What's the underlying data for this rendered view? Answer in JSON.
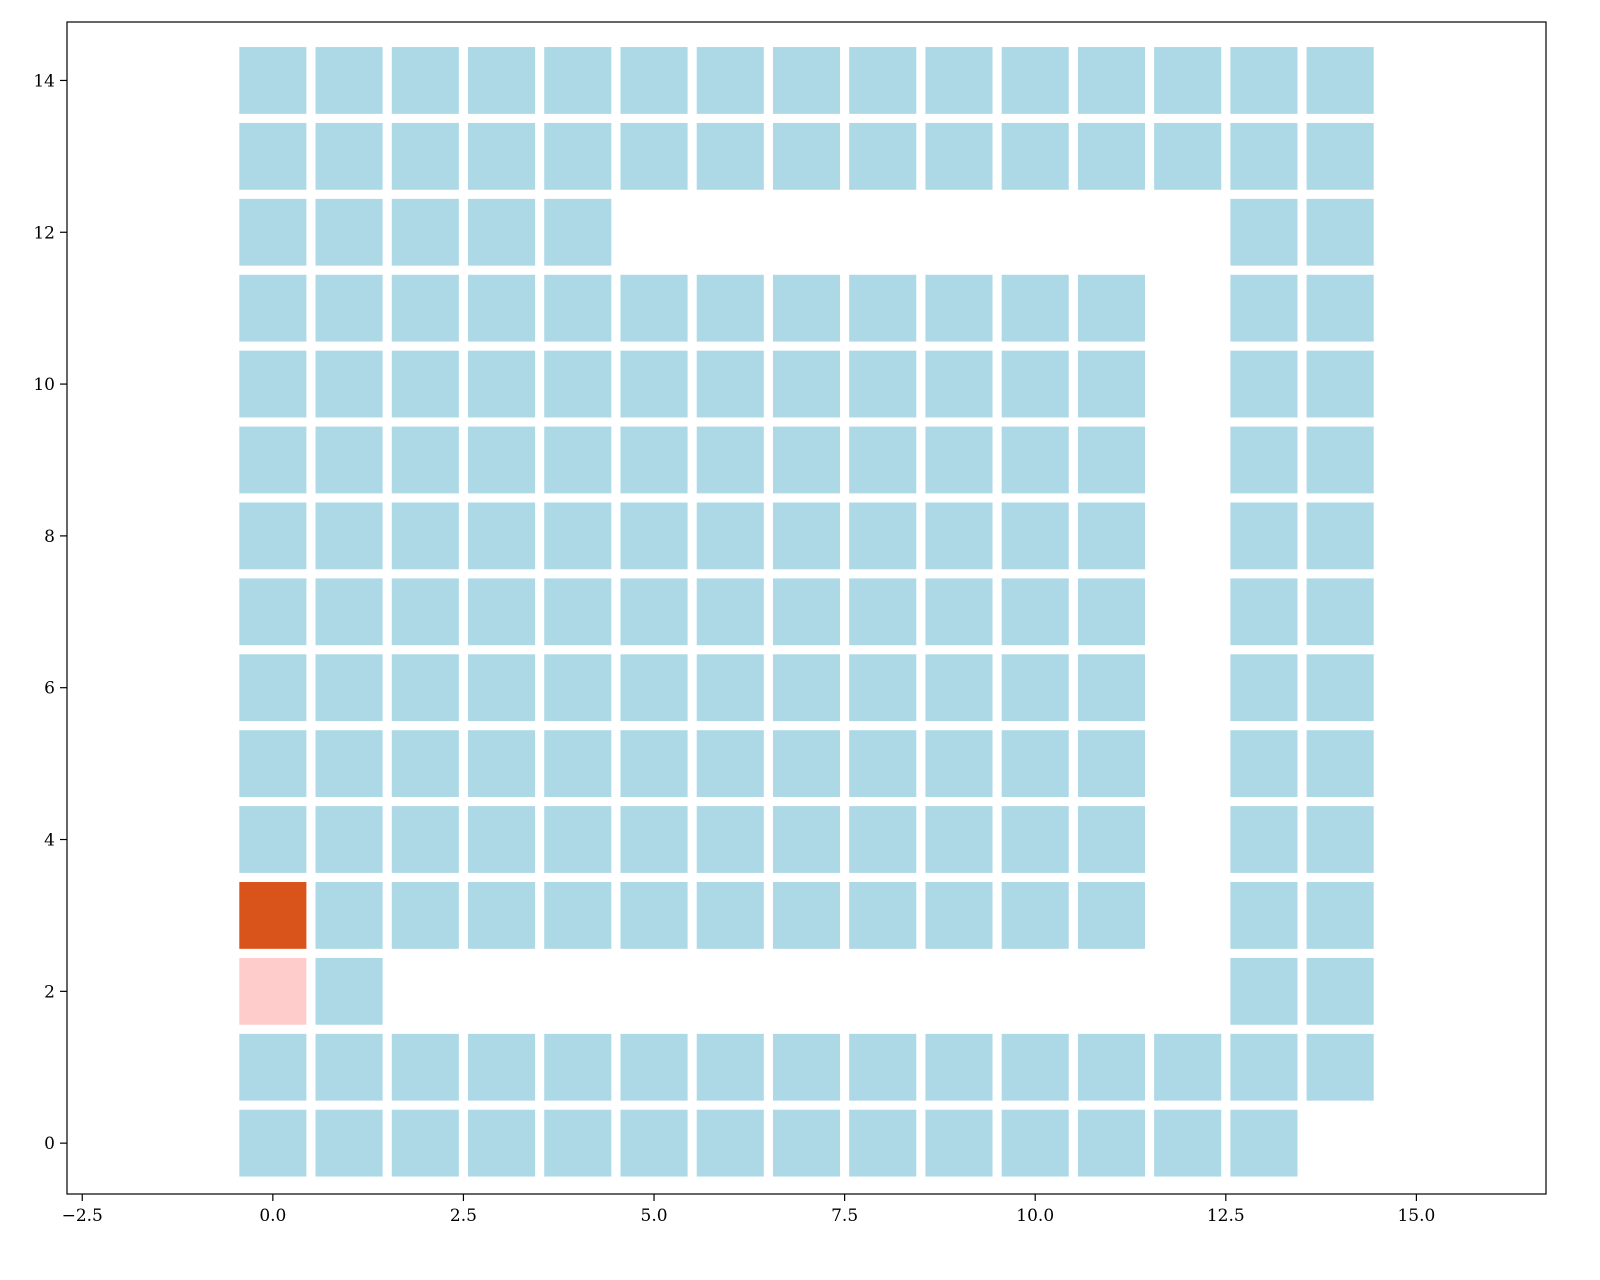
{
  "chart_data": {
    "type": "heatmap",
    "title": "",
    "xlabel": "",
    "ylabel": "",
    "xlim": [
      -2.7,
      16.7
    ],
    "ylim": [
      -0.67,
      14.77
    ],
    "grid": false,
    "x_ticks": [
      {
        "value": -2.5,
        "label": "−2.5"
      },
      {
        "value": 0,
        "label": "0.0"
      },
      {
        "value": 2.5,
        "label": "2.5"
      },
      {
        "value": 5,
        "label": "5.0"
      },
      {
        "value": 7.5,
        "label": "7.5"
      },
      {
        "value": 10,
        "label": "10.0"
      },
      {
        "value": 12.5,
        "label": "12.5"
      },
      {
        "value": 15,
        "label": "15.0"
      }
    ],
    "y_ticks": [
      {
        "value": 0,
        "label": "0"
      },
      {
        "value": 2,
        "label": "2"
      },
      {
        "value": 4,
        "label": "4"
      },
      {
        "value": 6,
        "label": "6"
      },
      {
        "value": 8,
        "label": "8"
      },
      {
        "value": 10,
        "label": "10"
      },
      {
        "value": 12,
        "label": "12"
      },
      {
        "value": 14,
        "label": "14"
      }
    ],
    "colors": {
      "default": "#add8e6",
      "start": "#d9541a",
      "goal": "#ffcccc"
    },
    "grid_size": 15,
    "empty_cells": [
      [
        2,
        2
      ],
      [
        3,
        2
      ],
      [
        4,
        2
      ],
      [
        5,
        2
      ],
      [
        6,
        2
      ],
      [
        7,
        2
      ],
      [
        8,
        2
      ],
      [
        9,
        2
      ],
      [
        10,
        2
      ],
      [
        11,
        2
      ],
      [
        12,
        2
      ],
      [
        12,
        3
      ],
      [
        12,
        4
      ],
      [
        12,
        5
      ],
      [
        12,
        6
      ],
      [
        12,
        7
      ],
      [
        12,
        8
      ],
      [
        12,
        9
      ],
      [
        12,
        10
      ],
      [
        12,
        11
      ],
      [
        5,
        12
      ],
      [
        6,
        12
      ],
      [
        7,
        12
      ],
      [
        8,
        12
      ],
      [
        9,
        12
      ],
      [
        10,
        12
      ],
      [
        11,
        12
      ],
      [
        12,
        12
      ],
      [
        14,
        0
      ]
    ],
    "highlight_cells": [
      {
        "x": 0,
        "y": 3,
        "color": "#d9541a"
      },
      {
        "x": 0,
        "y": 2,
        "color": "#ffcccc"
      }
    ]
  }
}
